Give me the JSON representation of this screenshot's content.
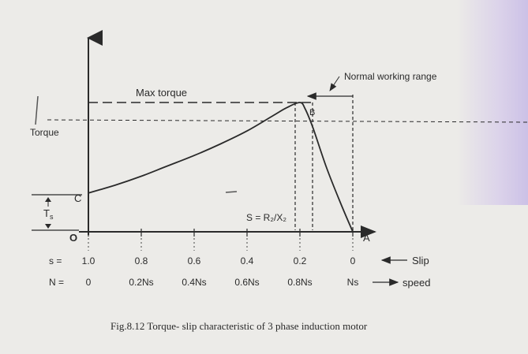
{
  "chart_data": {
    "type": "line",
    "title": "",
    "caption": "Fig.8.12  Torque- slip characteristic of 3 phase induction motor",
    "ylabel": "Torque",
    "labels": {
      "max_torque": "Max torque",
      "normal_range": "Normal working range",
      "slip_max": "S = R₂/X₂",
      "starting_torque": "T",
      "starting_torque_sub": "s",
      "point_B": "B",
      "point_C": "C",
      "point_O": "O",
      "point_A": "A"
    },
    "slip_row": {
      "prefix": "s = ",
      "ticks": [
        "1.0",
        "0.8",
        "0.6",
        "0.4",
        "0.2",
        "0"
      ],
      "suffix": "Slip"
    },
    "speed_row": {
      "prefix": "N = ",
      "ticks": [
        "0",
        "0.2Ns",
        "0.4Ns",
        "0.6Ns",
        "0.8Ns",
        "Ns"
      ],
      "suffix": "speed"
    },
    "x_slip": [
      1.0,
      0.8,
      0.6,
      0.4,
      0.2,
      0.0
    ],
    "curve": {
      "slip": [
        1.0,
        0.9,
        0.8,
        0.7,
        0.6,
        0.5,
        0.4,
        0.3,
        0.25,
        0.2,
        0.18,
        0.15,
        0.1,
        0.05,
        0.0
      ],
      "torque_rel": [
        0.3,
        0.36,
        0.43,
        0.51,
        0.59,
        0.68,
        0.78,
        0.9,
        0.96,
        1.0,
        0.95,
        0.8,
        0.5,
        0.24,
        0.0
      ]
    }
  }
}
